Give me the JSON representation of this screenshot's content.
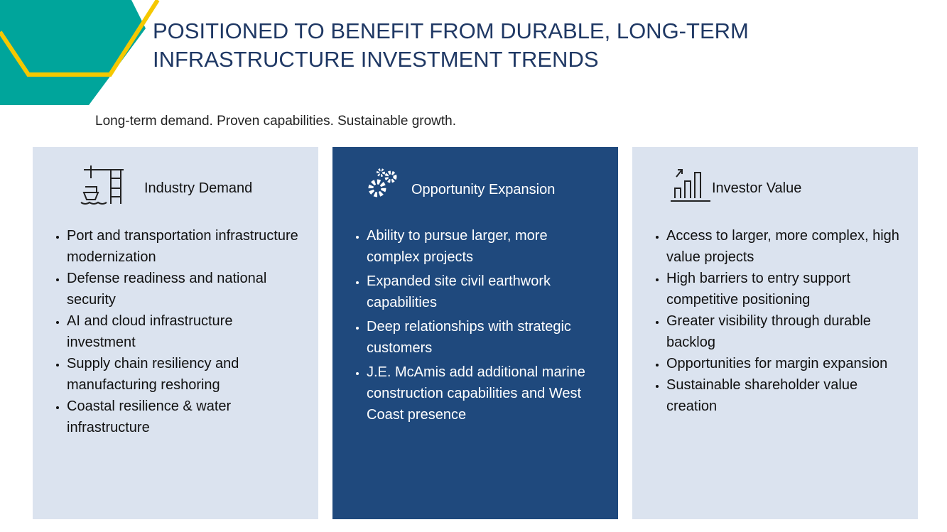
{
  "header": {
    "title_lines": [
      "POSITIONED TO BENEFIT FROM DURABLE, LONG-TERM",
      "INFRASTRUCTURE INVESTMENT TRENDS"
    ],
    "subtitle": "Long-term demand. Proven capabilities. Sustainable growth."
  },
  "columns": [
    {
      "heading": "Industry Demand",
      "items": [
        "Port and transportation infrastructure modernization",
        "Defense readiness and national security",
        "AI and cloud infrastructure investment",
        "Supply chain resiliency and manufacturing reshoring",
        "Coastal resilience & water infrastructure"
      ]
    },
    {
      "heading": "Opportunity Expansion",
      "items": [
        "Ability to pursue larger, more complex projects",
        "Expanded site civil earthwork capabilities",
        "Deep relationships with strategic customers",
        "J.E. McAmis add additional marine construction capabilities and West Coast presence"
      ]
    },
    {
      "heading": "Investor Value",
      "items": [
        "Access to larger, more complex, high value projects",
        "High barriers to entry support competitive positioning",
        "Greater visibility through durable backlog",
        "Opportunities for margin expansion",
        "Sustainable shareholder value creation"
      ]
    }
  ]
}
